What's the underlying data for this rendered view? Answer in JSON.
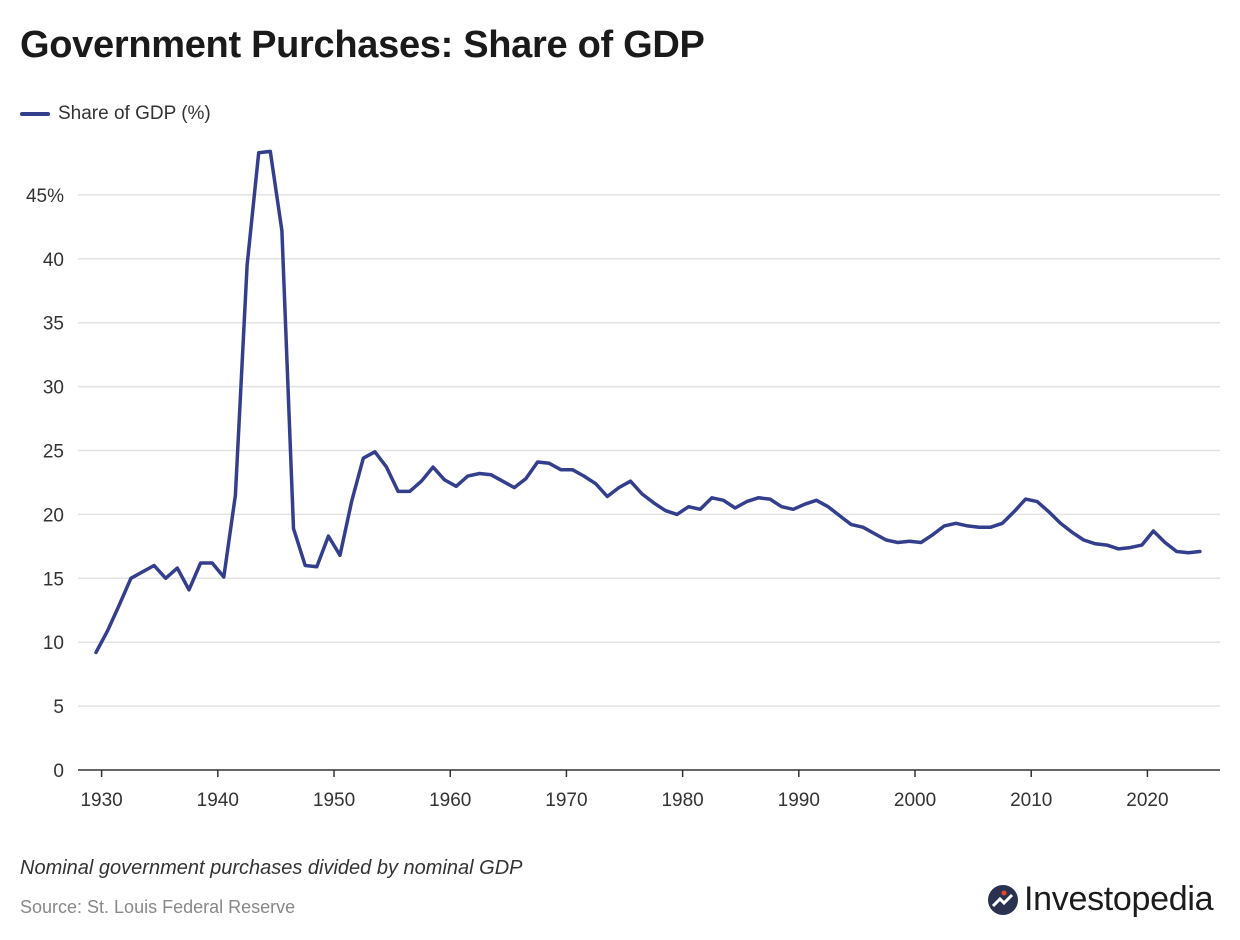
{
  "chart_data": {
    "type": "line",
    "title": "Government Purchases: Share of GDP",
    "xlabel": "",
    "ylabel": "",
    "xlim": [
      1929,
      2024
    ],
    "ylim": [
      0,
      48.5
    ],
    "grid": true,
    "legend_placement": "top-left",
    "x_ticks": [
      "1930",
      "1940",
      "1950",
      "1960",
      "1970",
      "1980",
      "1990",
      "2000",
      "2010",
      "2020"
    ],
    "y_ticks": [
      "0",
      "5",
      "10",
      "15",
      "20",
      "25",
      "30",
      "35",
      "40",
      "45%"
    ],
    "y_tick_values": [
      0,
      5,
      10,
      15,
      20,
      25,
      30,
      35,
      40,
      45
    ],
    "x_tick_values": [
      1930,
      1940,
      1950,
      1960,
      1970,
      1980,
      1990,
      2000,
      2010,
      2020
    ],
    "series": [
      {
        "name": "Share of GDP (%)",
        "color": "#333f8c",
        "x": [
          1929,
          1930,
          1931,
          1932,
          1933,
          1934,
          1935,
          1936,
          1937,
          1938,
          1939,
          1940,
          1941,
          1942,
          1943,
          1944,
          1945,
          1946,
          1947,
          1948,
          1949,
          1950,
          1951,
          1952,
          1953,
          1954,
          1955,
          1956,
          1957,
          1958,
          1959,
          1960,
          1961,
          1962,
          1963,
          1964,
          1965,
          1966,
          1967,
          1968,
          1969,
          1970,
          1971,
          1972,
          1973,
          1974,
          1975,
          1976,
          1977,
          1978,
          1979,
          1980,
          1981,
          1982,
          1983,
          1984,
          1985,
          1986,
          1987,
          1988,
          1989,
          1990,
          1991,
          1992,
          1993,
          1994,
          1995,
          1996,
          1997,
          1998,
          1999,
          2000,
          2001,
          2002,
          2003,
          2004,
          2005,
          2006,
          2007,
          2008,
          2009,
          2010,
          2011,
          2012,
          2013,
          2014,
          2015,
          2016,
          2017,
          2018,
          2019,
          2020,
          2021,
          2022,
          2023,
          2024
        ],
        "y": [
          9.2,
          10.9,
          12.9,
          15.0,
          15.5,
          16.0,
          15.0,
          15.8,
          14.1,
          16.2,
          16.2,
          15.1,
          21.5,
          39.5,
          48.3,
          48.4,
          42.2,
          18.9,
          16.0,
          15.9,
          18.3,
          16.8,
          21.0,
          24.4,
          24.9,
          23.7,
          21.8,
          21.8,
          22.6,
          23.7,
          22.7,
          22.2,
          23.0,
          23.2,
          23.1,
          22.6,
          22.1,
          22.8,
          24.1,
          24.0,
          23.5,
          23.5,
          23.0,
          22.4,
          21.4,
          22.1,
          22.6,
          21.6,
          20.9,
          20.3,
          20.0,
          20.6,
          20.4,
          21.3,
          21.1,
          20.5,
          21.0,
          21.3,
          21.2,
          20.6,
          20.4,
          20.8,
          21.1,
          20.6,
          19.9,
          19.2,
          19.0,
          18.5,
          18.0,
          17.8,
          17.9,
          17.8,
          18.4,
          19.1,
          19.3,
          19.1,
          19.0,
          19.0,
          19.3,
          20.2,
          21.2,
          21.0,
          20.2,
          19.3,
          18.6,
          18.0,
          17.7,
          17.6,
          17.3,
          17.4,
          17.6,
          18.7,
          17.8,
          17.1,
          17.0,
          17.1
        ]
      }
    ]
  },
  "note": "Nominal government purchases divided by nominal GDP",
  "source": "Source: St. Louis Federal Reserve",
  "logo": {
    "text": "Investopedia",
    "icon": "investopedia-logo-icon",
    "color": "#2b3250",
    "dot_color": "#e8452c"
  }
}
